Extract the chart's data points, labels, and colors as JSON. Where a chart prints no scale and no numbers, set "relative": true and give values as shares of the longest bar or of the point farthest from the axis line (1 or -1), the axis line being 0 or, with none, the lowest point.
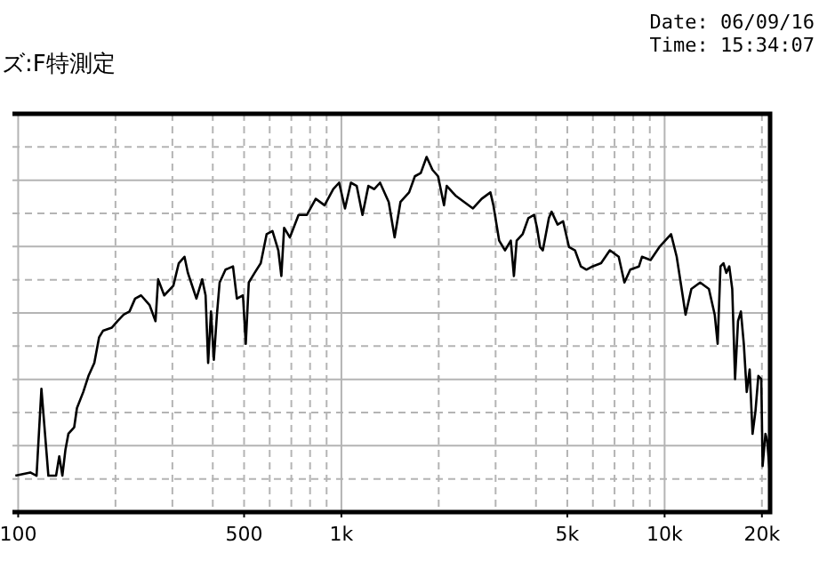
{
  "chart_data": {
    "type": "line",
    "title": "ズ:F特測定",
    "annotations": [
      "Date: 06/09/16",
      "Time: 15:34:07"
    ],
    "x": [
      98,
      109,
      114,
      118,
      124,
      131,
      134,
      137,
      140,
      143,
      149,
      152,
      159,
      165,
      172,
      178,
      183,
      195,
      203,
      212,
      221,
      230,
      240,
      255,
      266,
      271,
      283,
      302,
      314,
      327,
      335,
      348,
      356,
      371,
      380,
      387,
      395,
      403,
      412,
      420,
      438,
      462,
      475,
      496,
      506,
      517,
      539,
      563,
      587,
      612,
      638,
      652,
      665,
      693,
      737,
      782,
      833,
      887,
      944,
      984,
      1026,
      1070,
      1115,
      1162,
      1212,
      1264,
      1317,
      1401,
      1461,
      1523,
      1620,
      1688,
      1760,
      1835,
      1913,
      1991,
      2077,
      2118,
      2254,
      2399,
      2553,
      2716,
      2891,
      2953,
      3077,
      3208,
      3343,
      3418,
      3486,
      3637,
      3788,
      3948,
      4030,
      4118,
      4200,
      4385,
      4470,
      4666,
      4853,
      5062,
      5280,
      5506,
      5730,
      5980,
      6360,
      6770,
      7210,
      7510,
      7830,
      8330,
      8510,
      9050,
      9630,
      10470,
      10900,
      11370,
      11610,
      12100,
      12880,
      13710,
      14290,
      14590,
      14890,
      15210,
      15520,
      15850,
      16190,
      16520,
      16870,
      17220,
      17580,
      17950,
      18330,
      18710,
      19100,
      19500,
      19910,
      20100,
      20510,
      20760,
      21190
    ],
    "series": [
      {
        "color": "#000000",
        "values": [
          0.01,
          0.02,
          0.01,
          0.28,
          0.01,
          0.01,
          0.07,
          0.01,
          0.09,
          0.14,
          0.16,
          0.22,
          0.27,
          0.32,
          0.36,
          0.44,
          0.46,
          0.47,
          0.49,
          0.51,
          0.52,
          0.56,
          0.57,
          0.54,
          0.49,
          0.62,
          0.57,
          0.6,
          0.67,
          0.69,
          0.64,
          0.59,
          0.56,
          0.62,
          0.57,
          0.36,
          0.52,
          0.37,
          0.51,
          0.61,
          0.65,
          0.66,
          0.56,
          0.57,
          0.42,
          0.61,
          0.64,
          0.67,
          0.76,
          0.77,
          0.71,
          0.63,
          0.78,
          0.75,
          0.82,
          0.82,
          0.87,
          0.85,
          0.9,
          0.92,
          0.84,
          0.92,
          0.91,
          0.82,
          0.91,
          0.9,
          0.92,
          0.86,
          0.75,
          0.86,
          0.89,
          0.94,
          0.95,
          1.0,
          0.96,
          0.94,
          0.85,
          0.91,
          0.88,
          0.86,
          0.84,
          0.87,
          0.89,
          0.85,
          0.74,
          0.71,
          0.74,
          0.63,
          0.74,
          0.76,
          0.81,
          0.82,
          0.78,
          0.72,
          0.71,
          0.81,
          0.83,
          0.79,
          0.8,
          0.72,
          0.71,
          0.66,
          0.65,
          0.66,
          0.67,
          0.71,
          0.69,
          0.61,
          0.65,
          0.66,
          0.69,
          0.68,
          0.72,
          0.76,
          0.69,
          0.57,
          0.51,
          0.59,
          0.61,
          0.59,
          0.51,
          0.42,
          0.66,
          0.67,
          0.64,
          0.66,
          0.59,
          0.31,
          0.49,
          0.52,
          0.42,
          0.27,
          0.34,
          0.14,
          0.21,
          0.32,
          0.31,
          0.04,
          0.14,
          0.12,
          0.01
        ]
      }
    ],
    "relative": true,
    "log": "x",
    "xlim": [
      96,
      21200
    ],
    "xticks": [
      100,
      500,
      {
        "value": 1000,
        "label": "1k"
      },
      {
        "value": 5000,
        "label": "5k"
      },
      {
        "value": 10000,
        "label": "10k"
      },
      {
        "value": 20000,
        "label": "20k"
      }
    ],
    "grid": true
  }
}
